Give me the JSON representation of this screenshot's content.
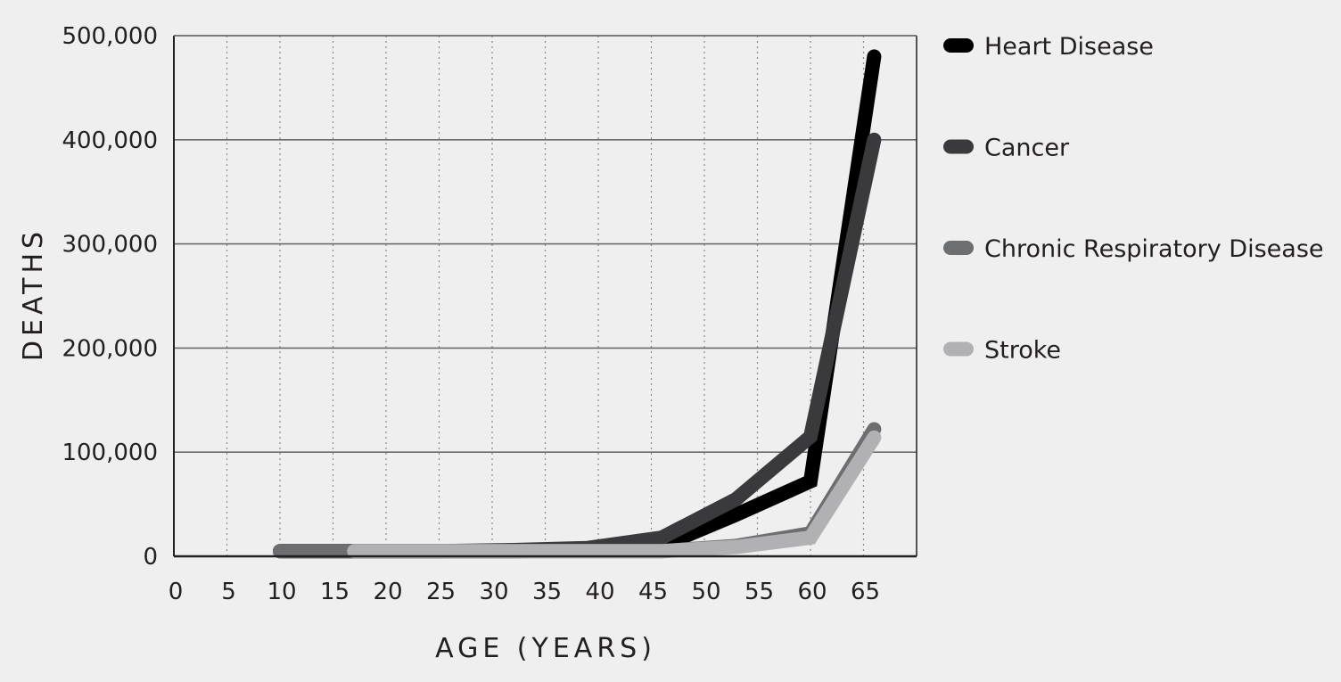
{
  "chart_data": {
    "type": "line",
    "xlabel": "AGE (YEARS)",
    "ylabel": "DEATHS",
    "xlim": [
      0,
      70
    ],
    "ylim": [
      0,
      500000
    ],
    "x_ticks": [
      "0",
      "5",
      "10",
      "15",
      "20",
      "25",
      "30",
      "35",
      "40",
      "45",
      "50",
      "55",
      "60",
      "65"
    ],
    "y_ticks": [
      {
        "value": 0,
        "label": "0"
      },
      {
        "value": 100000,
        "label": "100,000"
      },
      {
        "value": 200000,
        "label": "200,000"
      },
      {
        "value": 300000,
        "label": "300,000"
      },
      {
        "value": 400000,
        "label": "400,000"
      },
      {
        "value": 500000,
        "label": "500,000"
      }
    ],
    "grid": {
      "horizontal": true,
      "vertical": "dotted"
    },
    "legend_position": "right",
    "series": [
      {
        "name": "Heart Disease",
        "color": "#000000",
        "points": [
          [
            10,
            5000
          ],
          [
            17,
            5000
          ],
          [
            25,
            5000
          ],
          [
            32,
            5000
          ],
          [
            39,
            6000
          ],
          [
            46,
            10000
          ],
          [
            53,
            40000
          ],
          [
            60,
            72000
          ],
          [
            66,
            480000
          ]
        ]
      },
      {
        "name": "Cancer",
        "color": "#3a3a3c",
        "points": [
          [
            10,
            5000
          ],
          [
            17,
            5000
          ],
          [
            25,
            5000
          ],
          [
            32,
            6000
          ],
          [
            39,
            8000
          ],
          [
            46,
            18000
          ],
          [
            53,
            55000
          ],
          [
            60,
            115000
          ],
          [
            66,
            400000
          ]
        ]
      },
      {
        "name": "Chronic Respiratory Disease",
        "color": "#6d6e70",
        "points": [
          [
            10,
            5000
          ],
          [
            17,
            5000
          ],
          [
            25,
            5000
          ],
          [
            32,
            5000
          ],
          [
            39,
            5000
          ],
          [
            46,
            5000
          ],
          [
            53,
            10000
          ],
          [
            60,
            22000
          ],
          [
            66,
            122000
          ]
        ]
      },
      {
        "name": "Stroke",
        "color": "#b1b1b3",
        "points": [
          [
            17,
            5000
          ],
          [
            25,
            5000
          ],
          [
            32,
            5000
          ],
          [
            39,
            5000
          ],
          [
            46,
            5000
          ],
          [
            53,
            9000
          ],
          [
            60,
            18000
          ],
          [
            66,
            114000
          ]
        ]
      }
    ]
  }
}
